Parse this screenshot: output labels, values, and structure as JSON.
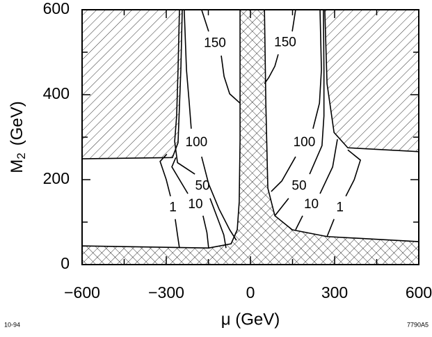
{
  "chart_data": {
    "type": "contour",
    "x_label": "μ  (GeV)",
    "y_label_main": "M",
    "y_label_sub": "2",
    "y_label_unit": "(GeV)",
    "xlim": [
      -600,
      600
    ],
    "ylim": [
      0,
      600
    ],
    "xticks": [
      {
        "value": -600,
        "label": "−600"
      },
      {
        "value": -300,
        "label": "−300"
      },
      0,
      300,
      600
    ],
    "xminorticks": [
      -450,
      -150,
      150,
      450
    ],
    "yticks": [
      0,
      200,
      400,
      600
    ],
    "yminorticks": [
      100,
      300,
      500
    ],
    "color": "#000000",
    "regions": [
      {
        "pattern": "hatch",
        "x": [
          -600,
          -243,
          -248,
          -258,
          -278,
          -600
        ],
        "y": [
          600,
          600,
          459,
          287,
          252,
          249
        ]
      },
      {
        "pattern": "hatch",
        "x": [
          265,
          600,
          600,
          347,
          298,
          273
        ],
        "y": [
          600,
          600,
          266,
          275,
          311,
          426
        ]
      },
      {
        "pattern": "crosshatch",
        "x": [
          -600,
          600,
          600,
          273,
          149,
          87,
          62,
          55,
          50,
          -37,
          -37,
          -40,
          -47,
          -69,
          -149,
          -600
        ],
        "y": [
          0,
          0,
          54,
          66,
          82,
          115,
          180,
          377,
          600,
          600,
          295,
          148,
          82,
          49,
          39,
          44
        ]
      }
    ],
    "contours": [
      {
        "level": 150,
        "x": [
          -174,
          -149,
          null,
          -104,
          -94,
          -74,
          -37
        ],
        "y": [
          600,
          549,
          null,
          492,
          443,
          402,
          380
        ]
      },
      {
        "level": 100,
        "x": [
          -236,
          -228,
          -218,
          -211,
          null,
          -174,
          -149,
          -112,
          -74,
          -50
        ],
        "y": [
          600,
          459,
          380,
          320,
          null,
          254,
          190,
          131,
          82,
          57
        ]
      },
      {
        "level": 50,
        "x": [
          -253,
          -258,
          -263,
          -270,
          -260,
          -198,
          null,
          -144,
          -112,
          -95,
          -87
        ],
        "y": [
          600,
          459,
          350,
          290,
          240,
          213,
          null,
          156,
          100,
          70,
          39
        ]
      },
      {
        "level": 10,
        "x": [
          -266,
          -280,
          -223,
          null,
          -169,
          -155,
          -149
        ],
        "y": [
          252,
          230,
          167,
          null,
          115,
          75,
          39
        ]
      },
      {
        "level": 1,
        "x": [
          -298,
          -322,
          -300,
          -285,
          null,
          -268,
          -260,
          -253
        ],
        "y": [
          260,
          243,
          200,
          161,
          null,
          107,
          70,
          39
        ]
      },
      {
        "level": 150,
        "x": [
          50,
          65,
          87,
          99,
          null,
          149,
          161
        ],
        "y": [
          426,
          440,
          467,
          495,
          null,
          549,
          600
        ]
      },
      {
        "level": 100,
        "x": [
          248,
          253,
          246,
          223,
          null,
          161,
          112,
          74
        ],
        "y": [
          600,
          459,
          380,
          320,
          null,
          254,
          197,
          172
        ]
      },
      {
        "level": 50,
        "x": [
          260,
          262,
          262,
          255,
          211,
          null,
          136,
          87
        ],
        "y": [
          600,
          459,
          350,
          280,
          213,
          null,
          156,
          115
        ]
      },
      {
        "level": 10,
        "x": [
          310,
          293,
          248,
          null,
          186,
          161
        ],
        "y": [
          295,
          230,
          167,
          null,
          115,
          82
        ]
      },
      {
        "level": 1,
        "x": [
          347,
          392,
          370,
          340,
          null,
          298,
          273
        ],
        "y": [
          270,
          246,
          200,
          161,
          null,
          107,
          66
        ]
      }
    ],
    "footnote_left": "10-94",
    "footnote_right": "7790A5"
  }
}
